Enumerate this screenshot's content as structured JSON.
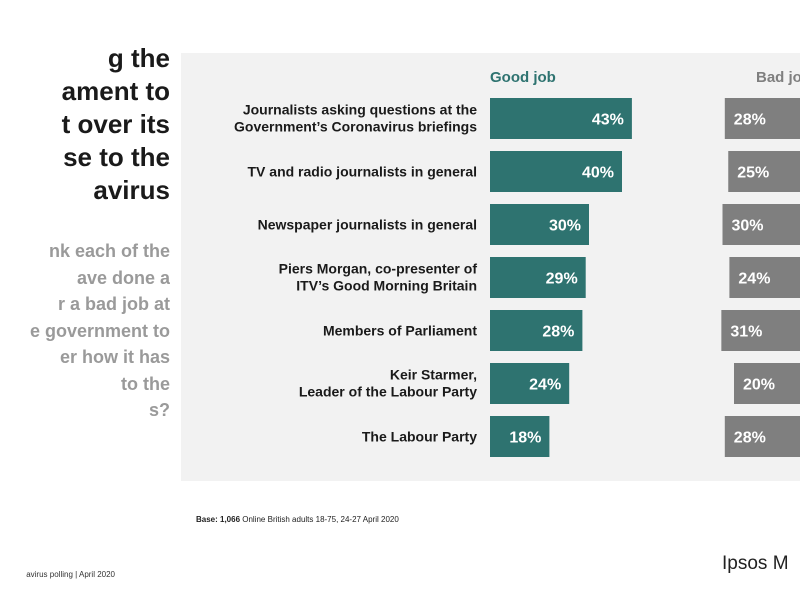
{
  "title_lines": [
    "g the",
    "ament to",
    "t over its",
    "se to the",
    "avirus"
  ],
  "question_lines": [
    "nk each of the",
    "ave done a",
    "r a bad job at",
    "e government to",
    "er how it has",
    "to the",
    "s?"
  ],
  "base": {
    "label": "Base: 1,066",
    "text": " Online British adults 18-75,  24-27 April 2020"
  },
  "footer": "avirus polling | April 2020",
  "logo": "Ipsos M",
  "colors": {
    "good": "#2e7370",
    "bad": "#7f7f7f",
    "panel": "#f2f2f2",
    "label": "#1a1a1a"
  },
  "chart_data": {
    "type": "bar",
    "orientation": "horizontal",
    "categories": [
      [
        "Journalists asking questions at the",
        "Government’s Coronavirus briefings"
      ],
      [
        "TV and radio journalists in general"
      ],
      [
        "Newspaper journalists in general"
      ],
      [
        "Piers Morgan, co-presenter of",
        "ITV’s Good Morning Britain"
      ],
      [
        "Members of Parliament"
      ],
      [
        "Keir Starmer,",
        "Leader of the Labour Party"
      ],
      [
        "The Labour Party"
      ]
    ],
    "series": [
      {
        "name": "Good job",
        "values": [
          43,
          40,
          30,
          29,
          28,
          24,
          18
        ],
        "labels": [
          "43%",
          "40%",
          "30%",
          "29%",
          "28%",
          "24%",
          "18%"
        ]
      },
      {
        "name": "Bad jo",
        "values": [
          28,
          25,
          30,
          24,
          31,
          20,
          28
        ],
        "labels": [
          "28%",
          "25%",
          "30%",
          "24%",
          "31%",
          "20%",
          "28%"
        ]
      }
    ],
    "unit": "%"
  }
}
